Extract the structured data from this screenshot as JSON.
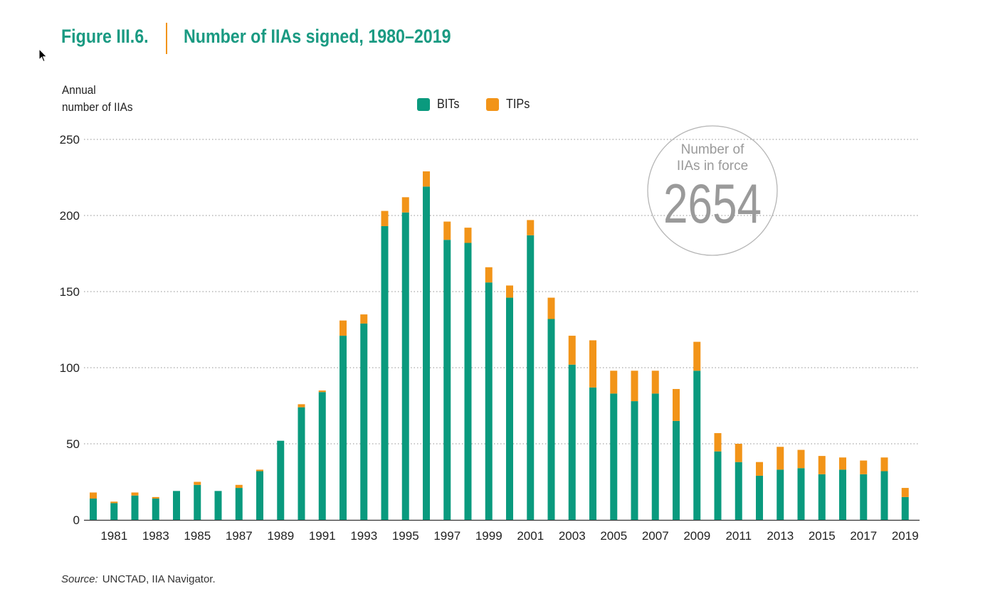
{
  "header": {
    "figure_label": "Figure III.6.",
    "title": "Number of IIAs signed, 1980–2019"
  },
  "footer": {
    "source_label": "Source:",
    "source_text": "UNCTAD, IIA Navigator."
  },
  "badge": {
    "line1": "Number of",
    "line2": "IIAs in force",
    "value": "2654"
  },
  "colors": {
    "bits": "#0a9a7e",
    "tips": "#f29418",
    "title": "#1a9a82",
    "grid": "#c8c8c8"
  },
  "chart_data": {
    "type": "bar",
    "stacked": true,
    "ylabel_line1": "Annual",
    "ylabel_line2": "number of IIAs",
    "ylim": [
      0,
      250
    ],
    "yticks": [
      0,
      50,
      100,
      150,
      200,
      250
    ],
    "grid": true,
    "legend_position": "top-center",
    "categories": [
      1980,
      1981,
      1982,
      1983,
      1984,
      1985,
      1986,
      1987,
      1988,
      1989,
      1990,
      1991,
      1992,
      1993,
      1994,
      1995,
      1996,
      1997,
      1998,
      1999,
      2000,
      2001,
      2002,
      2003,
      2004,
      2005,
      2006,
      2007,
      2008,
      2009,
      2010,
      2011,
      2012,
      2013,
      2014,
      2015,
      2016,
      2017,
      2018,
      2019
    ],
    "xtick_labels": [
      "1981",
      "1983",
      "1985",
      "1987",
      "1989",
      "1991",
      "1993",
      "1995",
      "1997",
      "1999",
      "2001",
      "2003",
      "2005",
      "2007",
      "2009",
      "2011",
      "2013",
      "2015",
      "2017",
      "2019"
    ],
    "series": [
      {
        "name": "BITs",
        "values": [
          14,
          11,
          16,
          14,
          19,
          23,
          19,
          21,
          32,
          52,
          74,
          84,
          121,
          129,
          193,
          202,
          219,
          184,
          182,
          156,
          146,
          187,
          132,
          102,
          87,
          83,
          78,
          83,
          65,
          98,
          45,
          38,
          29,
          33,
          34,
          30,
          33,
          30,
          32,
          15
        ]
      },
      {
        "name": "TIPs",
        "values": [
          4,
          1,
          2,
          1,
          0,
          2,
          0,
          2,
          1,
          0,
          2,
          1,
          10,
          6,
          10,
          10,
          10,
          12,
          10,
          10,
          8,
          10,
          14,
          19,
          31,
          15,
          20,
          15,
          21,
          19,
          12,
          12,
          9,
          15,
          12,
          12,
          8,
          9,
          9,
          6
        ]
      }
    ]
  }
}
